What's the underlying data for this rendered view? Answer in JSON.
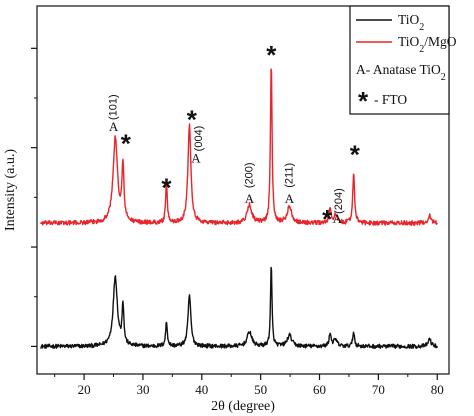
{
  "chart_data": {
    "type": "line",
    "xlabel": "2θ (degree)",
    "ylabel": "Intensity (a.u.)",
    "xlim": [
      12,
      82
    ],
    "ylim": [
      0,
      100
    ],
    "xticks": [
      20,
      30,
      40,
      50,
      60,
      70,
      80
    ],
    "y_ticks_labeled": false,
    "grid": false,
    "legend_position": "top-right",
    "colors": {
      "TiO2": "#111111",
      "TiO2/MgO": "#e8252a"
    },
    "legend": {
      "series": [
        {
          "label_main": "TiO",
          "label_sub": "2",
          "label_rest": "",
          "color": "#111111"
        },
        {
          "label_main": "TiO",
          "label_sub": "2",
          "label_rest": "/MgO",
          "color": "#e8252a"
        }
      ],
      "anatase": {
        "main": "A- Anatase TiO",
        "sub": "2"
      },
      "fto": {
        "star": "*",
        "text": "- FTO"
      }
    },
    "series": [
      {
        "name": "TiO2",
        "baseline": 7.5,
        "noise": 0.55,
        "peaks": [
          {
            "x": 25.3,
            "height": 19,
            "width": 0.42
          },
          {
            "x": 26.6,
            "height": 11,
            "width": 0.18
          },
          {
            "x": 34.0,
            "height": 6.5,
            "width": 0.18
          },
          {
            "x": 37.9,
            "height": 14,
            "width": 0.28
          },
          {
            "x": 48.1,
            "height": 4,
            "width": 0.45
          },
          {
            "x": 51.8,
            "height": 22,
            "width": 0.15
          },
          {
            "x": 54.9,
            "height": 3,
            "width": 0.45
          },
          {
            "x": 61.8,
            "height": 3.5,
            "width": 0.2
          },
          {
            "x": 62.7,
            "height": 1.8,
            "width": 0.35
          },
          {
            "x": 65.8,
            "height": 4,
            "width": 0.18
          },
          {
            "x": 78.7,
            "height": 2,
            "width": 0.3
          }
        ]
      },
      {
        "name": "TiO2/MgO",
        "baseline": 41,
        "noise": 0.6,
        "peaks": [
          {
            "x": 25.3,
            "height": 23,
            "width": 0.45
          },
          {
            "x": 26.6,
            "height": 15,
            "width": 0.2
          },
          {
            "x": 34.0,
            "height": 11,
            "width": 0.16
          },
          {
            "x": 37.9,
            "height": 27,
            "width": 0.3
          },
          {
            "x": 48.1,
            "height": 5,
            "width": 0.45
          },
          {
            "x": 51.8,
            "height": 44,
            "width": 0.16
          },
          {
            "x": 54.9,
            "height": 4.5,
            "width": 0.45
          },
          {
            "x": 61.8,
            "height": 4,
            "width": 0.2
          },
          {
            "x": 62.7,
            "height": 2,
            "width": 0.35
          },
          {
            "x": 65.8,
            "height": 14,
            "width": 0.18
          },
          {
            "x": 78.7,
            "height": 2,
            "width": 0.3
          }
        ]
      }
    ],
    "annotations": [
      {
        "kind": "label",
        "text": "A",
        "x": 25.0,
        "y": 66
      },
      {
        "kind": "hkl",
        "text": "(101)",
        "x": 25.0,
        "y": 72.5
      },
      {
        "kind": "star",
        "text": "*",
        "x": 27.1,
        "y": 64
      },
      {
        "kind": "star",
        "text": "*",
        "x": 34.0,
        "y": 52
      },
      {
        "kind": "star",
        "text": "*",
        "x": 38.3,
        "y": 70.5
      },
      {
        "kind": "hkl",
        "text": "(004)",
        "x": 39.5,
        "y": 64
      },
      {
        "kind": "label",
        "text": "A",
        "x": 39.0,
        "y": 57.5
      },
      {
        "kind": "hkl",
        "text": "(200)",
        "x": 48.1,
        "y": 54
      },
      {
        "kind": "label",
        "text": "A",
        "x": 48.1,
        "y": 46.5
      },
      {
        "kind": "star",
        "text": "*",
        "x": 51.8,
        "y": 88
      },
      {
        "kind": "hkl",
        "text": "(211)",
        "x": 54.9,
        "y": 54
      },
      {
        "kind": "label",
        "text": "A",
        "x": 54.9,
        "y": 46.5
      },
      {
        "kind": "star",
        "text": "*",
        "x": 61.3,
        "y": 43.5
      },
      {
        "kind": "hkl",
        "text": "(204)",
        "x": 63.3,
        "y": 47
      },
      {
        "kind": "label",
        "text": "A",
        "x": 63.0,
        "y": 41
      },
      {
        "kind": "star",
        "text": "*",
        "x": 66.0,
        "y": 61
      }
    ]
  }
}
